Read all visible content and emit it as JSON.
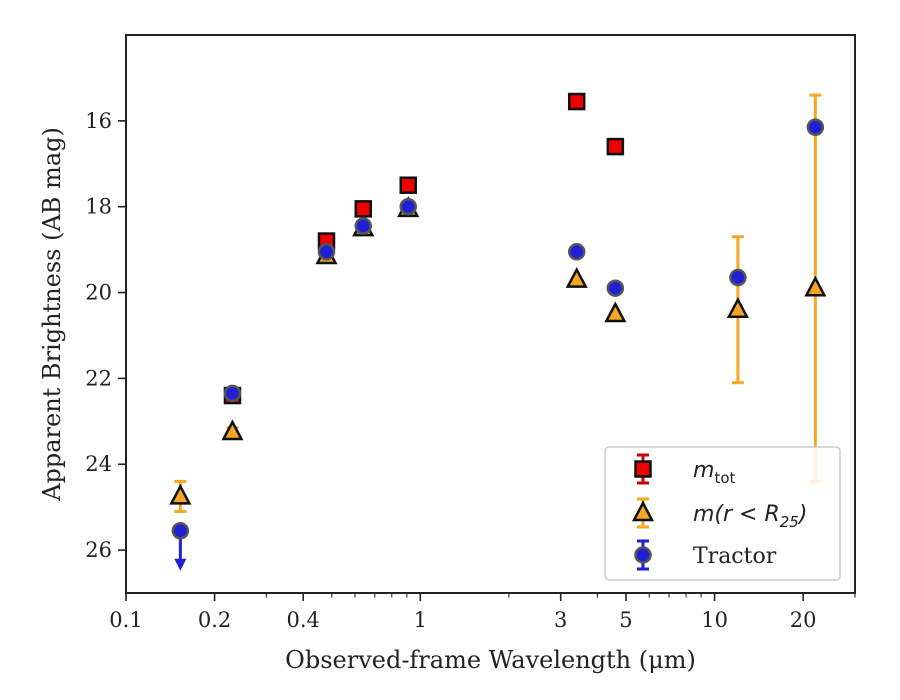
{
  "chart_data": {
    "type": "scatter",
    "title": "",
    "xlabel": "Observed-frame Wavelength (μm)",
    "ylabel": "Apparent Brightness (AB mag)",
    "xscale": "log",
    "xlim": [
      0.1,
      30
    ],
    "ylim": [
      27,
      14
    ],
    "y_inverted": true,
    "grid": false,
    "legend_position": "bottom-right",
    "x_ticks": [
      0.1,
      0.2,
      0.4,
      1,
      3,
      5,
      10,
      20
    ],
    "x_tick_labels": [
      "0.1",
      "0.2",
      "0.4",
      "1",
      "3",
      "5",
      "10",
      "20"
    ],
    "y_ticks": [
      16,
      18,
      20,
      22,
      24,
      26
    ],
    "y_tick_labels": [
      "16",
      "18",
      "20",
      "22",
      "24",
      "26"
    ],
    "legend": [
      {
        "label": "m_tot",
        "main": "m",
        "sub": "tot",
        "marker": "square"
      },
      {
        "label": "m(r < R_25)",
        "main": "m(r < R",
        "sub": "25",
        "tail": ")",
        "marker": "triangle"
      },
      {
        "label": "Tractor",
        "main": "Tractor",
        "marker": "circle"
      }
    ],
    "series": [
      {
        "name": "m_tot",
        "marker": "square",
        "color": "#ee0000",
        "errcolor": "#cc0000",
        "points": [
          {
            "x": 0.23,
            "y": 22.4,
            "err": 0.1
          },
          {
            "x": 0.48,
            "y": 18.8,
            "err": 0.05
          },
          {
            "x": 0.64,
            "y": 18.05,
            "err": 0.05
          },
          {
            "x": 0.91,
            "y": 17.5,
            "err": 0.05
          },
          {
            "x": 3.4,
            "y": 15.55,
            "err": 0.05
          },
          {
            "x": 4.6,
            "y": 16.6,
            "err": 0.05
          }
        ]
      },
      {
        "name": "m(r < R_25)",
        "marker": "triangle",
        "color": "#f5a623",
        "errcolor": "#f5a623",
        "points": [
          {
            "x": 0.153,
            "y": 24.75,
            "err": 0.35
          },
          {
            "x": 0.23,
            "y": 23.25,
            "err": 0.1
          },
          {
            "x": 0.48,
            "y": 19.15,
            "err": 0.05
          },
          {
            "x": 0.64,
            "y": 18.5,
            "err": 0.05
          },
          {
            "x": 0.91,
            "y": 18.05,
            "err": 0.05
          },
          {
            "x": 3.4,
            "y": 19.7,
            "err": 0.05
          },
          {
            "x": 4.6,
            "y": 20.5,
            "err": 0.05
          },
          {
            "x": 12,
            "y": 20.4,
            "err": 1.7
          },
          {
            "x": 22,
            "y": 19.9,
            "err": 4.5
          }
        ]
      },
      {
        "name": "Tractor",
        "marker": "circle",
        "color": "#1f1fd6",
        "errcolor": "#1f1fd6",
        "points": [
          {
            "x": 0.23,
            "y": 22.35,
            "err": 0.05
          },
          {
            "x": 0.48,
            "y": 19.05,
            "err": 0.05
          },
          {
            "x": 0.64,
            "y": 18.45,
            "err": 0.05
          },
          {
            "x": 0.91,
            "y": 18.0,
            "err": 0.05
          },
          {
            "x": 3.4,
            "y": 19.05,
            "err": 0.05
          },
          {
            "x": 4.6,
            "y": 19.9,
            "err": 0.05
          },
          {
            "x": 12,
            "y": 19.65,
            "err": 0.05
          },
          {
            "x": 22,
            "y": 16.15,
            "err": 0.05
          }
        ],
        "upper_limits": [
          {
            "x": 0.153,
            "y": 25.55
          }
        ]
      }
    ]
  }
}
